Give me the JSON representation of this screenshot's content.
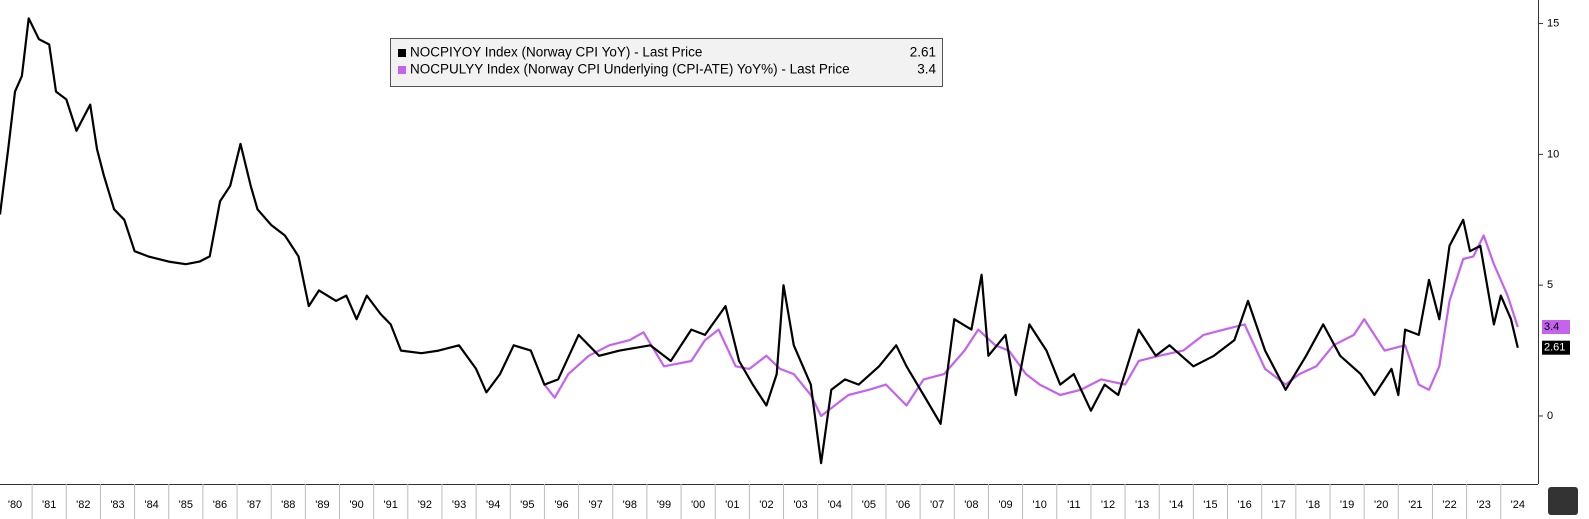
{
  "chart_data": {
    "type": "line",
    "xlim": [
      1980.06,
      2025.09
    ],
    "ylim": [
      -2.6,
      15.9
    ],
    "yticks": [
      0,
      5,
      10,
      15
    ],
    "xticks": [
      {
        "value": 1980,
        "label": "'80"
      },
      {
        "value": 1981,
        "label": "'81"
      },
      {
        "value": 1982,
        "label": "'82"
      },
      {
        "value": 1983,
        "label": "'83"
      },
      {
        "value": 1984,
        "label": "'84"
      },
      {
        "value": 1985,
        "label": "'85"
      },
      {
        "value": 1986,
        "label": "'86"
      },
      {
        "value": 1987,
        "label": "'87"
      },
      {
        "value": 1988,
        "label": "'88"
      },
      {
        "value": 1989,
        "label": "'89"
      },
      {
        "value": 1990,
        "label": "'90"
      },
      {
        "value": 1991,
        "label": "'91"
      },
      {
        "value": 1992,
        "label": "'92"
      },
      {
        "value": 1993,
        "label": "'93"
      },
      {
        "value": 1994,
        "label": "'94"
      },
      {
        "value": 1995,
        "label": "'95"
      },
      {
        "value": 1996,
        "label": "'96"
      },
      {
        "value": 1997,
        "label": "'97"
      },
      {
        "value": 1998,
        "label": "'98"
      },
      {
        "value": 1999,
        "label": "'99"
      },
      {
        "value": 2000,
        "label": "'00"
      },
      {
        "value": 2001,
        "label": "'01"
      },
      {
        "value": 2002,
        "label": "'02"
      },
      {
        "value": 2003,
        "label": "'03"
      },
      {
        "value": 2004,
        "label": "'04"
      },
      {
        "value": 2005,
        "label": "'05"
      },
      {
        "value": 2006,
        "label": "'06"
      },
      {
        "value": 2007,
        "label": "'07"
      },
      {
        "value": 2008,
        "label": "'08"
      },
      {
        "value": 2009,
        "label": "'09"
      },
      {
        "value": 2010,
        "label": "'10"
      },
      {
        "value": 2011,
        "label": "'11"
      },
      {
        "value": 2012,
        "label": "'12"
      },
      {
        "value": 2013,
        "label": "'13"
      },
      {
        "value": 2014,
        "label": "'14"
      },
      {
        "value": 2015,
        "label": "'15"
      },
      {
        "value": 2016,
        "label": "'16"
      },
      {
        "value": 2017,
        "label": "'17"
      },
      {
        "value": 2018,
        "label": "'18"
      },
      {
        "value": 2019,
        "label": "'19"
      },
      {
        "value": 2020,
        "label": "'20"
      },
      {
        "value": 2021,
        "label": "'21"
      },
      {
        "value": 2022,
        "label": "'22"
      },
      {
        "value": 2023,
        "label": "'23"
      },
      {
        "value": 2024,
        "label": "'24"
      }
    ],
    "series": [
      {
        "name": "NOCPIYOY Index (Norway CPI YoY) - Last Price",
        "color": "#000000",
        "last_price": 2.61,
        "x": [
          1980.06,
          1980.3,
          1980.5,
          1980.7,
          1980.9,
          1981.2,
          1981.5,
          1981.7,
          1982.0,
          1982.3,
          1982.7,
          1982.9,
          1983.1,
          1983.4,
          1983.7,
          1984.0,
          1984.4,
          1985.0,
          1985.5,
          1985.9,
          1986.2,
          1986.5,
          1986.8,
          1987.1,
          1987.4,
          1987.6,
          1988.0,
          1988.4,
          1988.8,
          1989.1,
          1989.4,
          1989.9,
          1990.2,
          1990.5,
          1990.8,
          1991.2,
          1991.5,
          1991.8,
          1992.4,
          1992.9,
          1993.5,
          1994.0,
          1994.3,
          1994.7,
          1995.1,
          1995.6,
          1996.0,
          1996.4,
          1997.0,
          1997.6,
          1998.2,
          1999.1,
          1999.7,
          2000.3,
          2000.7,
          2001.3,
          2001.7,
          2002.1,
          2002.5,
          2002.8,
          2003.0,
          2003.3,
          2003.8,
          2004.1,
          2004.4,
          2004.8,
          2005.2,
          2005.8,
          2006.3,
          2006.6,
          2007.1,
          2007.6,
          2008.0,
          2008.5,
          2008.8,
          2009.0,
          2009.5,
          2009.8,
          2010.2,
          2010.7,
          2011.1,
          2011.5,
          2012.0,
          2012.4,
          2012.8,
          2013.4,
          2013.9,
          2014.3,
          2015.0,
          2015.6,
          2016.2,
          2016.6,
          2017.1,
          2017.7,
          2018.3,
          2018.8,
          2019.3,
          2019.9,
          2020.3,
          2020.8,
          2021.0,
          2021.2,
          2021.6,
          2021.9,
          2022.2,
          2022.5,
          2022.9,
          2023.1,
          2023.4,
          2023.8,
          2024.0,
          2024.3,
          2024.5
        ],
        "values": [
          7.7,
          10.2,
          12.4,
          13.0,
          15.2,
          14.4,
          14.2,
          12.4,
          12.1,
          10.9,
          11.9,
          10.2,
          9.2,
          7.9,
          7.5,
          6.3,
          6.1,
          5.9,
          5.8,
          5.9,
          6.1,
          8.2,
          8.8,
          10.4,
          8.8,
          7.9,
          7.3,
          6.9,
          6.1,
          4.2,
          4.8,
          4.4,
          4.6,
          3.7,
          4.6,
          3.9,
          3.5,
          2.5,
          2.4,
          2.5,
          2.7,
          1.8,
          0.9,
          1.6,
          2.7,
          2.5,
          1.2,
          1.4,
          3.1,
          2.3,
          2.5,
          2.7,
          2.1,
          3.3,
          3.1,
          4.2,
          2.1,
          1.2,
          0.4,
          1.6,
          5.0,
          2.7,
          1.2,
          -1.8,
          1.0,
          1.4,
          1.2,
          1.9,
          2.7,
          1.9,
          0.8,
          -0.3,
          3.7,
          3.3,
          5.4,
          2.3,
          3.1,
          0.8,
          3.5,
          2.5,
          1.2,
          1.6,
          0.2,
          1.2,
          0.8,
          3.3,
          2.3,
          2.7,
          1.9,
          2.3,
          2.9,
          4.4,
          2.5,
          1.0,
          2.3,
          3.5,
          2.3,
          1.6,
          0.8,
          1.8,
          0.8,
          3.3,
          3.1,
          5.2,
          3.7,
          6.5,
          7.5,
          6.3,
          6.5,
          3.5,
          4.6,
          3.7,
          2.61
        ]
      },
      {
        "name": "NOCPULYY Index (Norway CPI Underlying (CPI-ATE) YoY%) - Last Price",
        "color": "#c463ee",
        "last_price": 3.4,
        "x": [
          1996.0,
          1996.3,
          1996.7,
          1997.3,
          1997.9,
          1998.5,
          1998.9,
          1999.5,
          2000.3,
          2000.7,
          2001.1,
          2001.6,
          2002.0,
          2002.5,
          2002.9,
          2003.3,
          2003.8,
          2004.1,
          2004.5,
          2004.9,
          2005.5,
          2006.0,
          2006.6,
          2007.1,
          2007.7,
          2008.3,
          2008.7,
          2009.2,
          2009.6,
          2010.1,
          2010.5,
          2011.1,
          2011.7,
          2012.3,
          2013.0,
          2013.4,
          2014.0,
          2014.7,
          2015.3,
          2015.9,
          2016.5,
          2017.1,
          2017.7,
          2018.1,
          2018.6,
          2019.1,
          2019.7,
          2020.0,
          2020.6,
          2021.2,
          2021.6,
          2021.9,
          2022.2,
          2022.5,
          2022.9,
          2023.2,
          2023.5,
          2023.8,
          2024.2,
          2024.5
        ],
        "values": [
          1.2,
          0.7,
          1.6,
          2.3,
          2.7,
          2.9,
          3.2,
          1.9,
          2.1,
          2.9,
          3.3,
          1.9,
          1.8,
          2.3,
          1.8,
          1.6,
          0.8,
          0.0,
          0.4,
          0.8,
          1.0,
          1.2,
          0.4,
          1.4,
          1.6,
          2.5,
          3.3,
          2.7,
          2.5,
          1.6,
          1.2,
          0.8,
          1.0,
          1.4,
          1.2,
          2.1,
          2.3,
          2.5,
          3.1,
          3.3,
          3.5,
          1.8,
          1.2,
          1.6,
          1.9,
          2.7,
          3.1,
          3.7,
          2.5,
          2.7,
          1.2,
          1.0,
          1.9,
          4.4,
          6.0,
          6.1,
          6.9,
          5.8,
          4.6,
          3.4
        ]
      }
    ]
  }
}
